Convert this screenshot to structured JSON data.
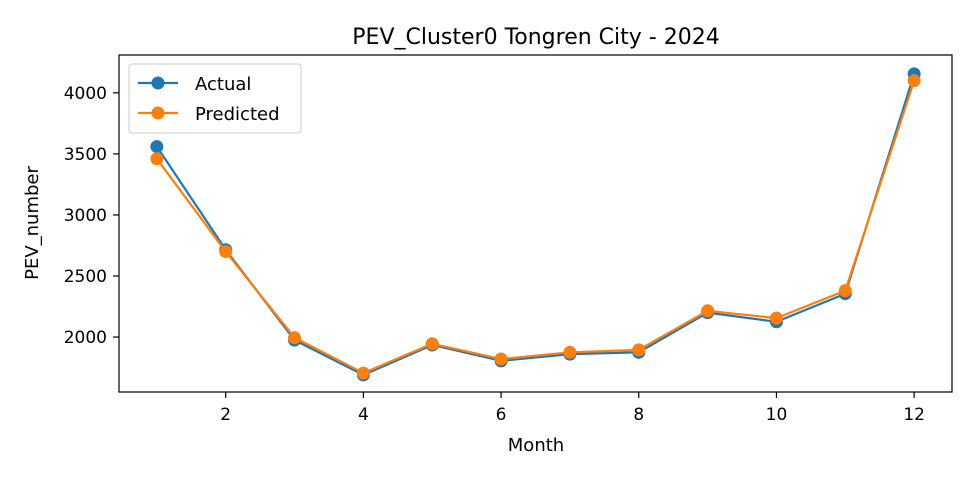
{
  "chart_data": {
    "type": "line",
    "title": "PEV_Cluster0 Tongren City - 2024",
    "xlabel": "Month",
    "ylabel": "PEV_number",
    "x": [
      1,
      2,
      3,
      4,
      5,
      6,
      7,
      8,
      9,
      10,
      11,
      12
    ],
    "xlim": [
      0.45,
      12.55
    ],
    "ylim": [
      1550,
      4310
    ],
    "xticks": [
      2,
      4,
      6,
      8,
      10,
      12
    ],
    "yticks": [
      2000,
      2500,
      3000,
      3500,
      4000
    ],
    "grid": false,
    "legend_position": "top-left",
    "series": [
      {
        "name": "Actual",
        "color": "#1f77b4",
        "values": [
          3560,
          2715,
          1975,
          1690,
          1935,
          1805,
          1860,
          1875,
          2200,
          2125,
          2355,
          4155
        ]
      },
      {
        "name": "Predicted",
        "color": "#ff7f0e",
        "values": [
          3460,
          2700,
          1995,
          1705,
          1945,
          1820,
          1875,
          1895,
          2215,
          2155,
          2380,
          4100
        ]
      }
    ]
  }
}
